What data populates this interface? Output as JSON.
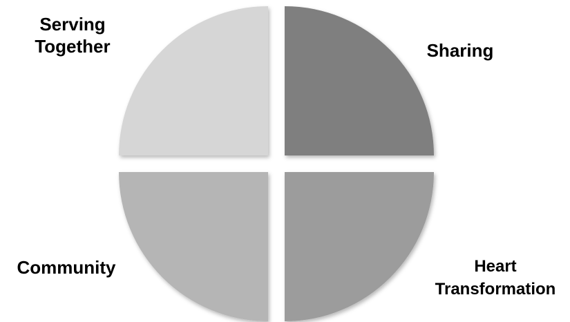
{
  "diagram": {
    "quadrants": [
      {
        "id": "top-left",
        "label": "Serving\nTogether",
        "color": "#d6d6d6"
      },
      {
        "id": "top-right",
        "label": "Sharing",
        "color": "#7f7f7f"
      },
      {
        "id": "bottom-left",
        "label": "Community",
        "color": "#b5b5b5"
      },
      {
        "id": "bottom-right",
        "label": "Heart\nTransformation",
        "color": "#9c9c9c"
      }
    ]
  }
}
